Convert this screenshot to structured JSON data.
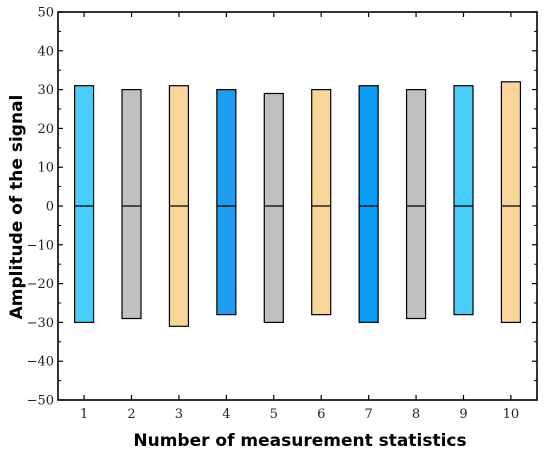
{
  "chart_data": {
    "type": "bar",
    "title": "",
    "xlabel": "Number of measurement statistics",
    "ylabel": "Amplitude of the signal",
    "categories": [
      "1",
      "2",
      "3",
      "4",
      "5",
      "6",
      "7",
      "8",
      "9",
      "10"
    ],
    "bars": [
      {
        "high": 31,
        "low": -30,
        "color": "#48cdf7"
      },
      {
        "high": 30,
        "low": -29,
        "color": "#c0c0c0"
      },
      {
        "high": 31,
        "low": -31,
        "color": "#f8d699"
      },
      {
        "high": 30,
        "low": -28,
        "color": "#1d9cf0"
      },
      {
        "high": 29,
        "low": -30,
        "color": "#c0c0c0"
      },
      {
        "high": 30,
        "low": -28,
        "color": "#f8d699"
      },
      {
        "high": 31,
        "low": -30,
        "color": "#0b9cf5"
      },
      {
        "high": 30,
        "low": -29,
        "color": "#c0c0c0"
      },
      {
        "high": 31,
        "low": -28,
        "color": "#48cdf7"
      },
      {
        "high": 32,
        "low": -30,
        "color": "#f8d699"
      }
    ],
    "ylim": [
      -50,
      50
    ],
    "yticks": [
      "50",
      "40",
      "30",
      "20",
      "10",
      "0",
      "−10",
      "−20",
      "−30",
      "−40",
      "−50"
    ],
    "ytick_values": [
      50,
      40,
      30,
      20,
      10,
      0,
      -10,
      -20,
      -30,
      -40,
      -50
    ],
    "grid": false,
    "zero_line": true
  }
}
